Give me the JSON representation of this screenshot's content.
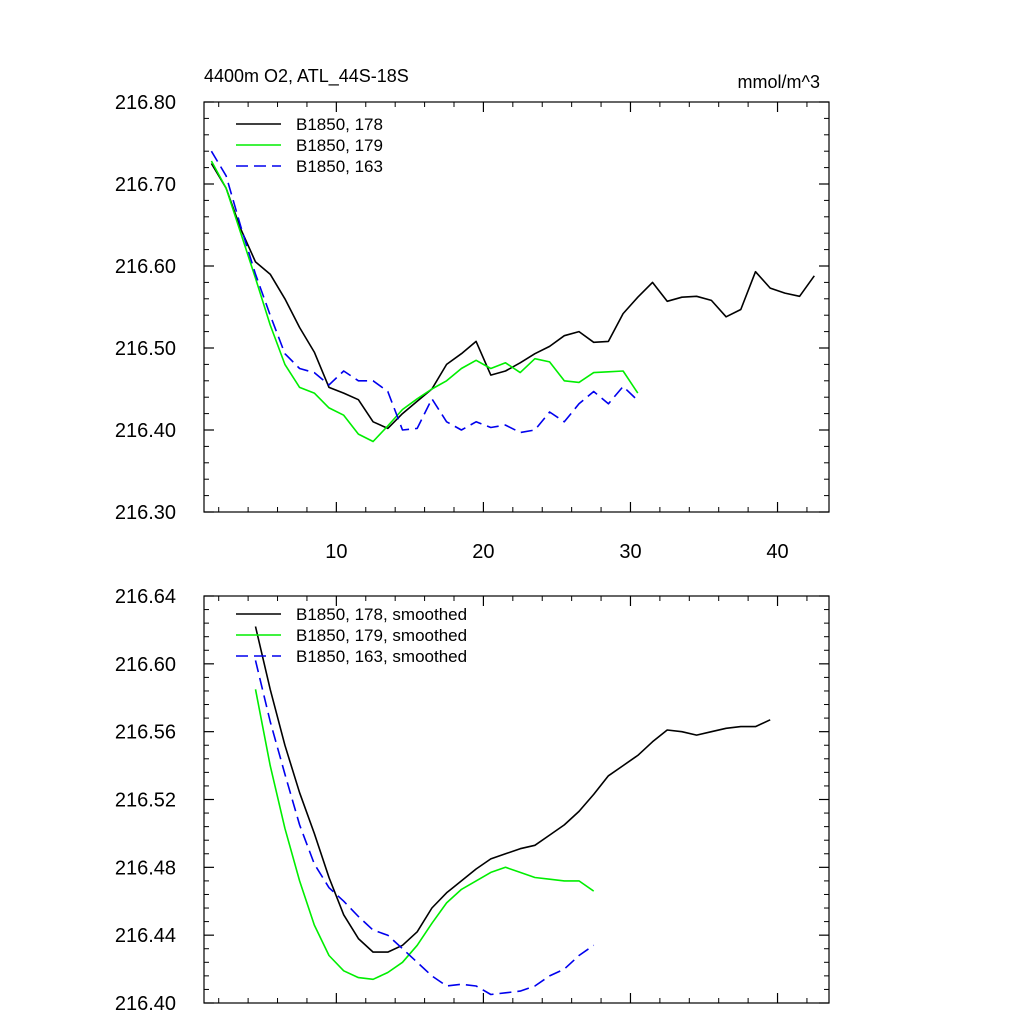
{
  "chart_data": [
    {
      "type": "line",
      "title": "4400m O2, ATL_44S-18S",
      "units": "mmol/m^3",
      "xlabel": "",
      "ylabel": "",
      "xlim": [
        1,
        43.5
      ],
      "ylim": [
        216.3,
        216.8
      ],
      "xticks": [
        10,
        20,
        30,
        40
      ],
      "xtick_labels": [
        "10",
        "20",
        "30",
        "40"
      ],
      "yticks": [
        216.3,
        216.4,
        216.5,
        216.6,
        216.7,
        216.8
      ],
      "ytick_labels": [
        "216.30",
        "216.40",
        "216.50",
        "216.60",
        "216.70",
        "216.80"
      ],
      "legend_position": "top-left",
      "series": [
        {
          "name": "B1850, 178",
          "color": "#000000",
          "dash": "solid",
          "x": [
            1.5,
            2.5,
            3.5,
            4.5,
            5.5,
            6.5,
            7.5,
            8.5,
            9.5,
            10.5,
            11.5,
            12.5,
            13.5,
            14.5,
            15.5,
            16.5,
            17.5,
            18.5,
            19.5,
            20.5,
            21.5,
            22.5,
            23.5,
            24.5,
            25.5,
            26.5,
            27.5,
            28.5,
            29.5,
            30.5,
            31.5,
            32.5,
            33.5,
            34.5,
            35.5,
            36.5,
            37.5,
            38.5,
            39.5,
            40.5,
            41.5,
            42.5
          ],
          "values": [
            216.725,
            216.695,
            216.645,
            216.605,
            216.59,
            216.56,
            216.525,
            216.495,
            216.452,
            216.445,
            216.437,
            216.41,
            216.402,
            216.42,
            216.435,
            216.45,
            216.48,
            216.493,
            216.508,
            216.467,
            216.472,
            216.482,
            216.493,
            216.502,
            216.515,
            216.52,
            216.507,
            216.508,
            216.542,
            216.562,
            216.58,
            216.557,
            216.562,
            216.563,
            216.558,
            216.538,
            216.547,
            216.593,
            216.573,
            216.567,
            216.563,
            216.588
          ]
        },
        {
          "name": "B1850, 179",
          "color": "#00ee00",
          "dash": "solid",
          "x": [
            1.5,
            2.5,
            3.5,
            4.5,
            5.5,
            6.5,
            7.5,
            8.5,
            9.5,
            10.5,
            11.5,
            12.5,
            13.5,
            14.5,
            15.5,
            16.5,
            17.5,
            18.5,
            19.5,
            20.5,
            21.5,
            22.5,
            23.5,
            24.5,
            25.5,
            26.5,
            27.5,
            28.5,
            29.5,
            30.5
          ],
          "values": [
            216.728,
            216.695,
            216.64,
            216.585,
            216.528,
            216.48,
            216.452,
            216.445,
            216.427,
            216.418,
            216.395,
            216.386,
            216.405,
            216.425,
            216.438,
            216.45,
            216.46,
            216.475,
            216.485,
            216.475,
            216.482,
            216.47,
            216.487,
            216.483,
            216.46,
            216.458,
            216.47,
            216.471,
            216.472,
            216.445
          ]
        },
        {
          "name": "B1850, 163",
          "color": "#0000ee",
          "dash": "dashed",
          "x": [
            1.5,
            2.5,
            3.5,
            4.5,
            5.5,
            6.5,
            7.5,
            8.5,
            9.5,
            10.5,
            11.5,
            12.5,
            13.5,
            14.5,
            15.5,
            16.5,
            17.5,
            18.5,
            19.5,
            20.5,
            21.5,
            22.5,
            23.5,
            24.5,
            25.5,
            26.5,
            27.5,
            28.5,
            29.5,
            30.5
          ],
          "values": [
            216.74,
            216.71,
            216.648,
            216.59,
            216.54,
            216.493,
            216.475,
            216.47,
            216.455,
            216.472,
            216.46,
            216.46,
            216.447,
            216.4,
            216.402,
            216.438,
            216.41,
            216.4,
            216.41,
            216.403,
            216.406,
            216.397,
            216.4,
            216.422,
            216.41,
            216.432,
            216.447,
            216.432,
            216.453,
            216.436
          ]
        }
      ]
    },
    {
      "type": "line",
      "title": "",
      "units": "",
      "xlabel": "",
      "ylabel": "",
      "xlim": [
        1,
        43.5
      ],
      "ylim": [
        216.4,
        216.64
      ],
      "xticks": [
        10,
        20,
        30,
        40
      ],
      "xtick_labels": [],
      "yticks": [
        216.4,
        216.44,
        216.48,
        216.52,
        216.56,
        216.6,
        216.64
      ],
      "ytick_labels": [
        "216.40",
        "216.44",
        "216.48",
        "216.52",
        "216.56",
        "216.60",
        "216.64"
      ],
      "legend_position": "top-left",
      "series": [
        {
          "name": "B1850, 178, smoothed",
          "color": "#000000",
          "dash": "solid",
          "x": [
            4.5,
            5.5,
            6.5,
            7.5,
            8.5,
            9.5,
            10.5,
            11.5,
            12.5,
            13.5,
            14.5,
            15.5,
            16.5,
            17.5,
            18.5,
            19.5,
            20.5,
            21.5,
            22.5,
            23.5,
            24.5,
            25.5,
            26.5,
            27.5,
            28.5,
            29.5,
            30.5,
            31.5,
            32.5,
            33.5,
            34.5,
            35.5,
            36.5,
            37.5,
            38.5,
            39.5
          ],
          "values": [
            216.622,
            216.585,
            216.552,
            216.524,
            216.5,
            216.474,
            216.452,
            216.438,
            216.43,
            216.43,
            216.434,
            216.442,
            216.456,
            216.465,
            216.472,
            216.479,
            216.485,
            216.488,
            216.491,
            216.493,
            216.499,
            216.505,
            216.513,
            216.523,
            216.534,
            216.54,
            216.546,
            216.554,
            216.561,
            216.56,
            216.558,
            216.56,
            216.562,
            216.563,
            216.563,
            216.567
          ]
        },
        {
          "name": "B1850, 179, smoothed",
          "color": "#00ee00",
          "dash": "solid",
          "x": [
            4.5,
            5.5,
            6.5,
            7.5,
            8.5,
            9.5,
            10.5,
            11.5,
            12.5,
            13.5,
            14.5,
            15.5,
            16.5,
            17.5,
            18.5,
            19.5,
            20.5,
            21.5,
            22.5,
            23.5,
            24.5,
            25.5,
            26.5,
            27.5
          ],
          "values": [
            216.585,
            216.54,
            216.503,
            216.472,
            216.446,
            216.428,
            216.419,
            216.415,
            216.414,
            216.418,
            216.424,
            216.434,
            216.447,
            216.459,
            216.467,
            216.472,
            216.477,
            216.48,
            216.477,
            216.474,
            216.473,
            216.472,
            216.472,
            216.466
          ]
        },
        {
          "name": "B1850, 163, smoothed",
          "color": "#0000ee",
          "dash": "dashed",
          "x": [
            4.5,
            5.5,
            6.5,
            7.5,
            8.5,
            9.5,
            10.5,
            11.5,
            12.5,
            13.5,
            14.5,
            15.5,
            16.5,
            17.5,
            18.5,
            19.5,
            20.5,
            21.5,
            22.5,
            23.5,
            24.5,
            25.5,
            26.5,
            27.5
          ],
          "values": [
            216.602,
            216.566,
            216.535,
            216.505,
            216.482,
            216.468,
            216.46,
            216.451,
            216.443,
            216.44,
            216.432,
            216.424,
            216.416,
            216.41,
            216.411,
            216.41,
            216.405,
            216.406,
            216.407,
            216.41,
            216.416,
            216.42,
            216.428,
            216.434
          ]
        }
      ]
    }
  ]
}
